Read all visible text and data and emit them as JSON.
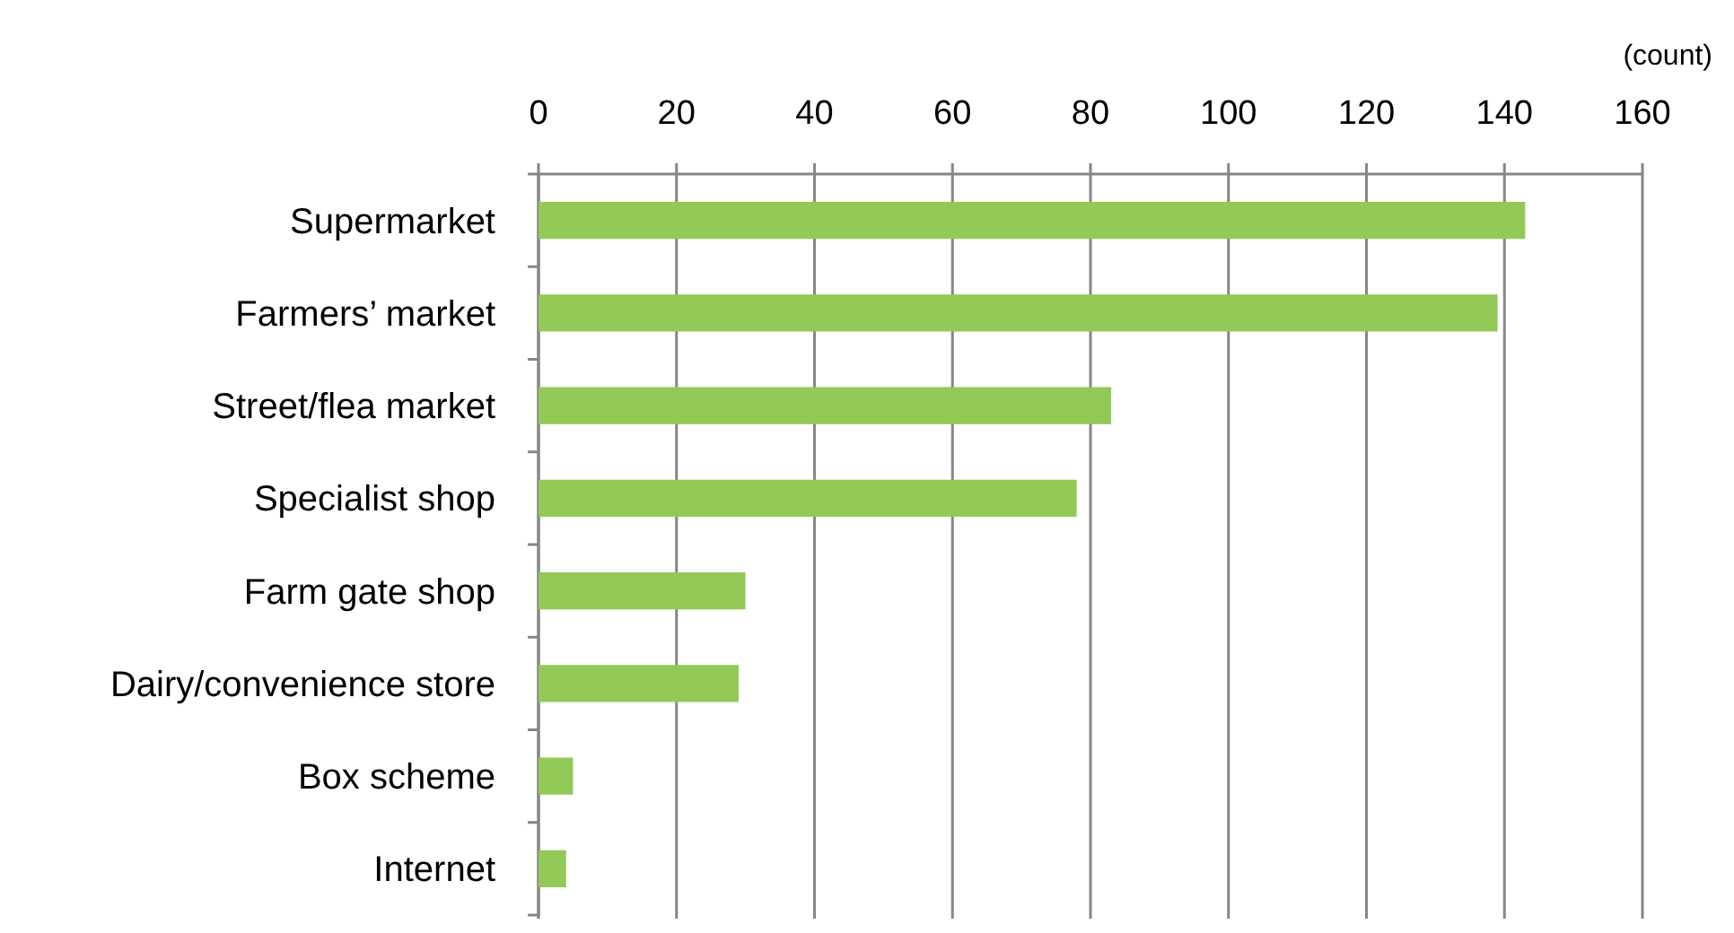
{
  "chart_data": {
    "type": "bar",
    "orientation": "horizontal",
    "xlabel": "(count)",
    "categories": [
      "Supermarket",
      "Farmers’ market",
      "Street/flea market",
      "Specialist shop",
      "Farm gate shop",
      "Dairy/convenience store",
      "Box scheme",
      "Internet"
    ],
    "values": [
      143,
      139,
      83,
      78,
      30,
      29,
      5,
      4
    ],
    "color": "#92c957",
    "xlim": [
      0,
      160
    ],
    "xticks": [
      0,
      20,
      40,
      60,
      80,
      100,
      120,
      140,
      160
    ],
    "grid": "x"
  }
}
